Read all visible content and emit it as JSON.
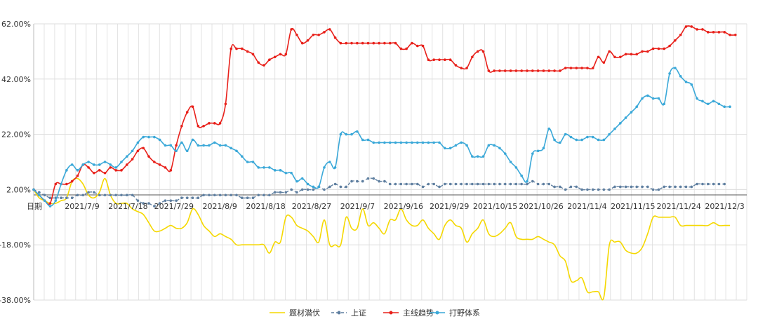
{
  "chart_data": {
    "type": "line",
    "title": "",
    "xlabel": "日期",
    "ylabel": "",
    "y_unit": "%",
    "ylim": [
      -38,
      62
    ],
    "y_ticks": [
      "62.00%",
      "42.00%",
      "22.00%",
      "2.00%",
      "-18.00%",
      "-38.00%"
    ],
    "x_ticks": [
      "2021/7/9",
      "2021/7/18",
      "2021/7/29",
      "2021/8/9",
      "2021/8/18",
      "2021/8/27",
      "2021/9/7",
      "2021/9/16",
      "2021/9/29",
      "2021/10/15",
      "2021/10/26",
      "2021/11/4",
      "2021/11/15",
      "2021/11/24",
      "2021/12/3"
    ],
    "grid": true,
    "legend_position": "bottom",
    "series": [
      {
        "name": "题材潜伏",
        "color": "#f5d800",
        "marker": "none",
        "values": [
          2,
          -1,
          -2,
          -3,
          -3,
          -2,
          -1,
          5,
          6,
          4,
          0,
          -1,
          1,
          6,
          0,
          -3,
          -3,
          -3,
          -5,
          -6,
          -7,
          -10,
          -13,
          -13,
          -12,
          -11,
          -12,
          -12,
          -10,
          -5,
          -7,
          -11,
          -13,
          -15,
          -14,
          -15,
          -16,
          -18,
          -18,
          -18,
          -18,
          -18,
          -18,
          -21,
          -17,
          -17,
          -8,
          -8,
          -11,
          -12,
          -13,
          -15,
          -17,
          -9,
          -18,
          -18,
          -18,
          -8,
          -12,
          -12,
          -5,
          -11,
          -10,
          -12,
          -14,
          -9,
          -9,
          -5,
          -9,
          -11,
          -11,
          -9,
          -12,
          -14,
          -16,
          -11,
          -9,
          -11,
          -12,
          -17,
          -14,
          -12,
          -9,
          -14,
          -15,
          -14,
          -12,
          -10,
          -15,
          -16,
          -16,
          -16,
          -15,
          -16,
          -17,
          -18,
          -22,
          -24,
          -31,
          -31,
          -30,
          -35,
          -35,
          -35,
          -37,
          -18,
          -17,
          -17,
          -20,
          -21,
          -21,
          -19,
          -14,
          -8,
          -8,
          -8,
          -8,
          -8,
          -11,
          -11,
          -11,
          -11,
          -11,
          -11,
          -10,
          -11,
          -11,
          -11
        ]
      },
      {
        "name": "上证",
        "color": "#5f7fa0",
        "marker": "circle",
        "dashed": true,
        "values": [
          2,
          1,
          0,
          -1,
          -1,
          -1,
          -1,
          -1,
          0,
          0,
          1,
          1,
          0,
          0,
          0,
          0,
          0,
          0,
          0,
          -2,
          -3,
          -3,
          -4,
          -3,
          -2,
          -2,
          -2,
          -1,
          -1,
          -1,
          -1,
          0,
          0,
          0,
          0,
          0,
          0,
          0,
          -1,
          -1,
          -1,
          0,
          0,
          0,
          1,
          1,
          1,
          2,
          1,
          2,
          2,
          2,
          3,
          2,
          3,
          4,
          3,
          3,
          5,
          5,
          5,
          6,
          6,
          5,
          5,
          4,
          4,
          4,
          4,
          4,
          4,
          3,
          4,
          4,
          3,
          4,
          4,
          4,
          4,
          4,
          4,
          4,
          4,
          4,
          4,
          4,
          4,
          4,
          4,
          4,
          4,
          5,
          4,
          4,
          4,
          3,
          3,
          2,
          3,
          3,
          2,
          2,
          2,
          2,
          2,
          2,
          3,
          3,
          3,
          3,
          3,
          3,
          3,
          2,
          2,
          3,
          3,
          3,
          3,
          3,
          3,
          4,
          4,
          4,
          4,
          4,
          4
        ]
      },
      {
        "name": "主线趋势",
        "color": "#e8201a",
        "marker": "circle",
        "values": [
          2,
          0,
          -2,
          -3,
          4,
          4,
          4,
          5,
          7,
          11,
          10,
          8,
          9,
          8,
          10,
          9,
          9,
          11,
          13,
          16,
          17,
          14,
          12,
          11,
          10,
          9,
          18,
          25,
          30,
          32,
          25,
          25,
          26,
          26,
          26,
          33,
          53,
          53,
          53,
          52,
          51,
          48,
          47,
          49,
          50,
          51,
          51,
          60,
          58,
          55,
          56,
          58,
          58,
          59,
          60,
          57,
          55,
          55,
          55,
          55,
          55,
          55,
          55,
          55,
          55,
          55,
          55,
          53,
          53,
          55,
          54,
          54,
          49,
          49,
          49,
          49,
          49,
          47,
          46,
          46,
          50,
          52,
          52,
          45,
          45,
          45,
          45,
          45,
          45,
          45,
          45,
          45,
          45,
          45,
          45,
          45,
          45,
          46,
          46,
          46,
          46,
          46,
          46,
          50,
          48,
          52,
          50,
          50,
          51,
          51,
          51,
          52,
          52,
          53,
          53,
          53,
          54,
          56,
          58,
          61,
          61,
          60,
          60,
          59,
          59,
          59,
          59,
          58,
          58
        ]
      },
      {
        "name": "打野体系",
        "color": "#3aa8d8",
        "marker": "circle",
        "values": [
          2,
          0,
          -2,
          -4,
          -2,
          4,
          9,
          11,
          9,
          11,
          12,
          11,
          11,
          12,
          11,
          10,
          12,
          14,
          16,
          19,
          21,
          21,
          21,
          20,
          18,
          18,
          16,
          19,
          16,
          20,
          18,
          18,
          18,
          19,
          18,
          18,
          17,
          16,
          14,
          12,
          12,
          10,
          10,
          10,
          9,
          9,
          8,
          8,
          5,
          6,
          4,
          3,
          3,
          10,
          12,
          10,
          22,
          22,
          22,
          23,
          20,
          20,
          19,
          19,
          19,
          19,
          19,
          19,
          19,
          19,
          19,
          19,
          19,
          19,
          19,
          17,
          17,
          18,
          19,
          18,
          14,
          14,
          14,
          18,
          18,
          17,
          15,
          12,
          10,
          7,
          5,
          15,
          16,
          17,
          24,
          20,
          19,
          22,
          21,
          20,
          20,
          21,
          21,
          20,
          20,
          22,
          24,
          26,
          28,
          30,
          32,
          35,
          36,
          35,
          35,
          33,
          44,
          46,
          43,
          41,
          40,
          35,
          34,
          33,
          34,
          33,
          32,
          32
        ]
      }
    ]
  }
}
